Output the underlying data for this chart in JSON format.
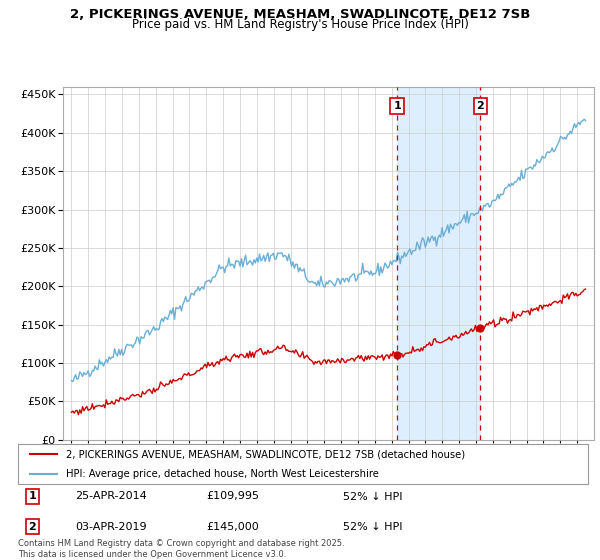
{
  "title_line1": "2, PICKERINGS AVENUE, MEASHAM, SWADLINCOTE, DE12 7SB",
  "title_line2": "Price paid vs. HM Land Registry's House Price Index (HPI)",
  "legend_line1": "2, PICKERINGS AVENUE, MEASHAM, SWADLINCOTE, DE12 7SB (detached house)",
  "legend_line2": "HPI: Average price, detached house, North West Leicestershire",
  "annotation1_date": "25-APR-2014",
  "annotation1_price": "£109,995",
  "annotation1_hpi": "52% ↓ HPI",
  "annotation2_date": "03-APR-2019",
  "annotation2_price": "£145,000",
  "annotation2_hpi": "52% ↓ HPI",
  "footnote": "Contains HM Land Registry data © Crown copyright and database right 2025.\nThis data is licensed under the Open Government Licence v3.0.",
  "sale1_year": 2014.32,
  "sale1_price": 109995,
  "sale2_year": 2019.25,
  "sale2_price": 145000,
  "hpi_color": "#6baed6",
  "sale_color": "#cc0000",
  "background_color": "#ffffff",
  "grid_color": "#cccccc",
  "vline_color": "#cc0000",
  "shade_color": "#ddeeff",
  "ylim": [
    0,
    460000
  ],
  "yticks": [
    0,
    50000,
    100000,
    150000,
    200000,
    250000,
    300000,
    350000,
    400000,
    450000
  ]
}
